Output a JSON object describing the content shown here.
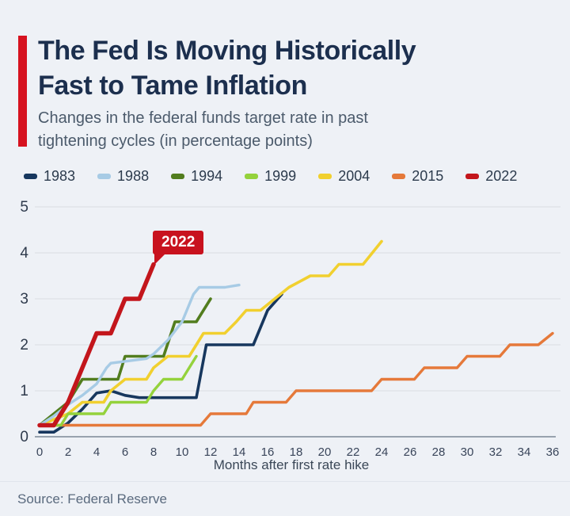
{
  "ui_colors": {
    "background": "#eef1f6",
    "accent_bar": "#d6121f",
    "title_text": "#1c2f4e",
    "subtitle_text": "#4b5a6b",
    "grid_line": "#d9dde3",
    "axis_line": "#7c8795",
    "axis_text": "#39455a",
    "legend_text": "#2c3b4d",
    "source_text": "#5a6a7e"
  },
  "chart_data": {
    "type": "line",
    "title": "The Fed Is Moving Historically Fast to Tame Inflation",
    "title_lines": [
      "The Fed Is Moving Historically",
      "Fast to Tame Inflation"
    ],
    "subtitle_lines": [
      "Changes in the federal funds target rate in past",
      "tightening cycles (in percentage points)"
    ],
    "xlabel": "Months after first rate hike",
    "ylabel": "",
    "source": "Source: Federal Reserve",
    "xlim": [
      0,
      36
    ],
    "ylim": [
      0,
      5
    ],
    "x_ticks": [
      0,
      2,
      4,
      6,
      8,
      10,
      12,
      14,
      16,
      18,
      20,
      22,
      24,
      26,
      28,
      30,
      32,
      34,
      36
    ],
    "y_ticks": [
      0,
      1,
      2,
      3,
      4,
      5
    ],
    "grid": "horizontal",
    "legend_position": "top",
    "annotation": {
      "label": "2022",
      "x": 8,
      "y": 3.75,
      "color": "#c8121e"
    },
    "series": [
      {
        "name": "1983",
        "color": "#17375e",
        "width": 3.6,
        "points": [
          [
            0,
            0.1
          ],
          [
            1,
            0.1
          ],
          [
            2,
            0.3
          ],
          [
            3,
            0.6
          ],
          [
            4,
            0.95
          ],
          [
            5,
            1.0
          ],
          [
            6,
            0.9
          ],
          [
            7,
            0.85
          ],
          [
            11,
            0.85
          ],
          [
            11.7,
            2.0
          ],
          [
            15,
            2.0
          ],
          [
            16,
            2.75
          ],
          [
            17,
            3.1
          ]
        ]
      },
      {
        "name": "1988",
        "color": "#a7cbe5",
        "width": 3.4,
        "points": [
          [
            0,
            0.25
          ],
          [
            1,
            0.45
          ],
          [
            2,
            0.7
          ],
          [
            3,
            0.9
          ],
          [
            4,
            1.15
          ],
          [
            4.7,
            1.5
          ],
          [
            5,
            1.6
          ],
          [
            7.5,
            1.7
          ],
          [
            8,
            1.8
          ],
          [
            9,
            2.1
          ],
          [
            10,
            2.5
          ],
          [
            10.8,
            3.1
          ],
          [
            11.2,
            3.25
          ],
          [
            13,
            3.25
          ],
          [
            14,
            3.3
          ]
        ]
      },
      {
        "name": "1994",
        "color": "#527d1e",
        "width": 3.6,
        "points": [
          [
            0,
            0.25
          ],
          [
            1,
            0.5
          ],
          [
            2,
            0.75
          ],
          [
            3,
            1.25
          ],
          [
            5.5,
            1.25
          ],
          [
            6,
            1.75
          ],
          [
            8.7,
            1.75
          ],
          [
            9.5,
            2.5
          ],
          [
            11,
            2.5
          ],
          [
            12,
            3.0
          ]
        ]
      },
      {
        "name": "1999",
        "color": "#94d23c",
        "width": 3.4,
        "points": [
          [
            0,
            0.25
          ],
          [
            1.5,
            0.25
          ],
          [
            2,
            0.5
          ],
          [
            4.5,
            0.5
          ],
          [
            5,
            0.75
          ],
          [
            7.5,
            0.75
          ],
          [
            8,
            1.0
          ],
          [
            8.7,
            1.25
          ],
          [
            10,
            1.25
          ],
          [
            11,
            1.75
          ]
        ]
      },
      {
        "name": "2004",
        "color": "#f1d02f",
        "width": 3.6,
        "points": [
          [
            0,
            0.25
          ],
          [
            2,
            0.5
          ],
          [
            3,
            0.75
          ],
          [
            4.5,
            0.75
          ],
          [
            5,
            1.0
          ],
          [
            6,
            1.25
          ],
          [
            7.5,
            1.25
          ],
          [
            8,
            1.5
          ],
          [
            9,
            1.75
          ],
          [
            10.5,
            1.75
          ],
          [
            11,
            2.0
          ],
          [
            11.5,
            2.25
          ],
          [
            13,
            2.25
          ],
          [
            13.8,
            2.5
          ],
          [
            14.5,
            2.75
          ],
          [
            15.5,
            2.75
          ],
          [
            16.5,
            3.0
          ],
          [
            17.5,
            3.25
          ],
          [
            19,
            3.5
          ],
          [
            20.3,
            3.5
          ],
          [
            21,
            3.75
          ],
          [
            22.7,
            3.75
          ],
          [
            24,
            4.25
          ]
        ]
      },
      {
        "name": "2015",
        "color": "#e5793a",
        "width": 3.4,
        "points": [
          [
            0,
            0.25
          ],
          [
            11.3,
            0.25
          ],
          [
            12,
            0.5
          ],
          [
            14.5,
            0.5
          ],
          [
            15,
            0.75
          ],
          [
            17.3,
            0.75
          ],
          [
            18,
            1.0
          ],
          [
            23.3,
            1.0
          ],
          [
            24,
            1.25
          ],
          [
            26.3,
            1.25
          ],
          [
            27,
            1.5
          ],
          [
            29.3,
            1.5
          ],
          [
            30,
            1.75
          ],
          [
            32.3,
            1.75
          ],
          [
            33,
            2.0
          ],
          [
            35,
            2.0
          ],
          [
            36,
            2.25
          ]
        ]
      },
      {
        "name": "2022",
        "color": "#c3161c",
        "width": 5.5,
        "points": [
          [
            0,
            0.25
          ],
          [
            1,
            0.25
          ],
          [
            2,
            0.75
          ],
          [
            3,
            1.5
          ],
          [
            4,
            2.25
          ],
          [
            5,
            2.25
          ],
          [
            6,
            3.0
          ],
          [
            7,
            3.0
          ],
          [
            8,
            3.75
          ]
        ]
      }
    ]
  }
}
